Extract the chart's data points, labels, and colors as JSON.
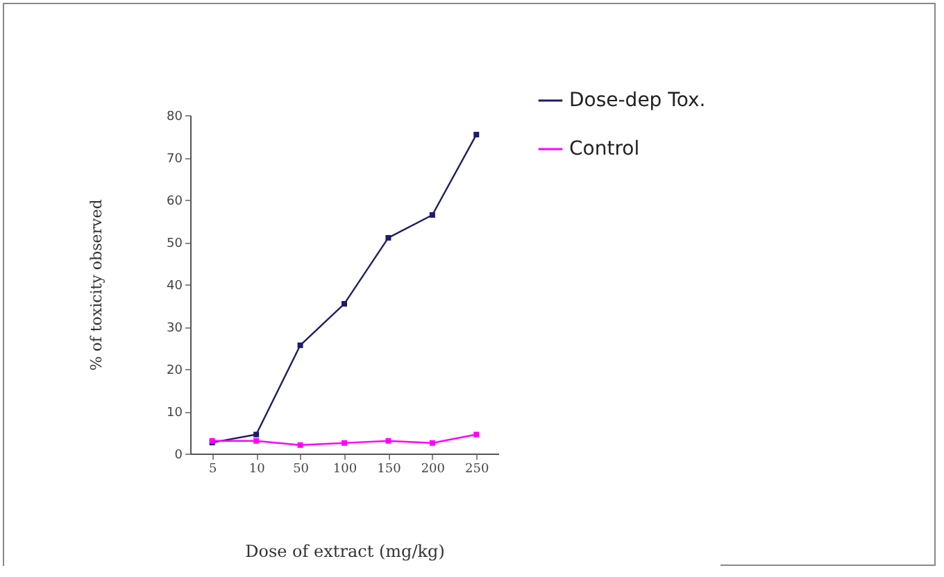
{
  "chart_data": {
    "type": "line",
    "xlabel": "Dose of extract  (mg/kg)",
    "ylabel": "% of toxicity observed",
    "categories": [
      "5",
      "10",
      "50",
      "100",
      "150",
      "200",
      "250"
    ],
    "series": [
      {
        "name": "Dose-dep Tox.",
        "color": "#1c1c6b",
        "values": [
          2.6,
          4.5,
          25.6,
          35.4,
          51,
          56.4,
          75.4
        ]
      },
      {
        "name": "Control",
        "color": "#ff00ff",
        "values": [
          3,
          3,
          2,
          2.5,
          3,
          2.5,
          4.5
        ]
      }
    ],
    "ylim": [
      0,
      80
    ],
    "yticks": [
      0,
      10,
      20,
      30,
      40,
      50,
      60,
      70,
      80
    ],
    "grid": false,
    "legend": "top right",
    "marker": "square"
  }
}
